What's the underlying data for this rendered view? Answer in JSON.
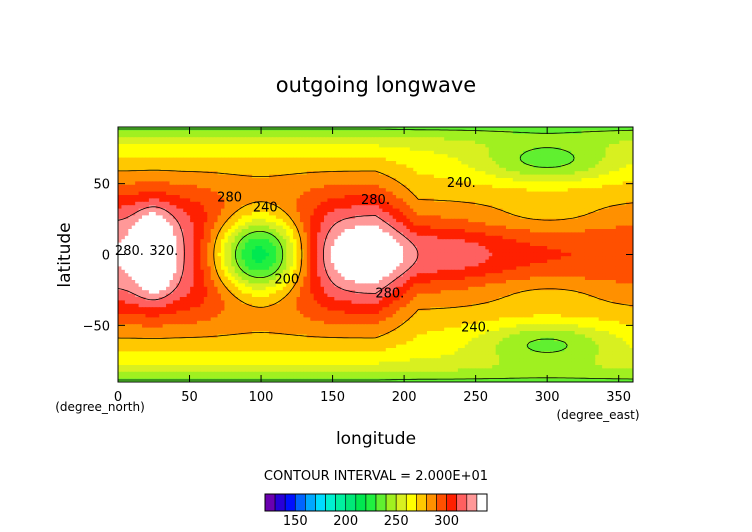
{
  "chart_data": {
    "type": "heatmap",
    "title": "outgoing longwave",
    "xlabel": "longitude",
    "ylabel": "latitude",
    "x_unit_label": "(degree_east)",
    "y_unit_label": "(degree_north)",
    "xlim": [
      0,
      360
    ],
    "ylim": [
      -90,
      90
    ],
    "x_ticks": [
      0,
      50,
      100,
      150,
      200,
      250,
      300,
      350
    ],
    "y_ticks": [
      -50,
      0,
      50
    ],
    "x_tick_labels": [
      "0",
      "50",
      "100",
      "150",
      "200",
      "250",
      "300",
      "350"
    ],
    "y_tick_labels": [
      "−50",
      "0",
      "50"
    ],
    "contour_interval_text": "CONTOUR INTERVAL = 2.000E+01",
    "contour_levels": [
      200,
      240,
      280,
      320
    ],
    "contour_labels": [
      {
        "text": "280.",
        "lon": 8,
        "lat": 2
      },
      {
        "text": "320.",
        "lon": 32,
        "lat": 2
      },
      {
        "text": "280",
        "lon": 78,
        "lat": 40
      },
      {
        "text": "240",
        "lon": 103,
        "lat": 33
      },
      {
        "text": "200",
        "lon": 118,
        "lat": -18
      },
      {
        "text": "280.",
        "lon": 180,
        "lat": 38
      },
      {
        "text": "240.",
        "lon": 240,
        "lat": 50
      },
      {
        "text": "280.",
        "lon": 190,
        "lat": -28
      },
      {
        "text": "240.",
        "lon": 250,
        "lat": -52
      }
    ],
    "features": {
      "desert_max": {
        "lon": 25,
        "lat": 2,
        "value": 330
      },
      "convective_min": {
        "lon": 100,
        "lat": 0,
        "value": 190
      },
      "north_cold_min": {
        "lon": 300,
        "lat": 65,
        "value": 225
      },
      "south_cold_min": {
        "lon": 300,
        "lat": -62,
        "value": 225
      }
    },
    "colorbar": {
      "min": 120,
      "max": 340,
      "step": 10,
      "tick_values": [
        150,
        200,
        250,
        300
      ],
      "tick_labels": [
        "150",
        "200",
        "250",
        "300"
      ]
    },
    "grid": false
  }
}
